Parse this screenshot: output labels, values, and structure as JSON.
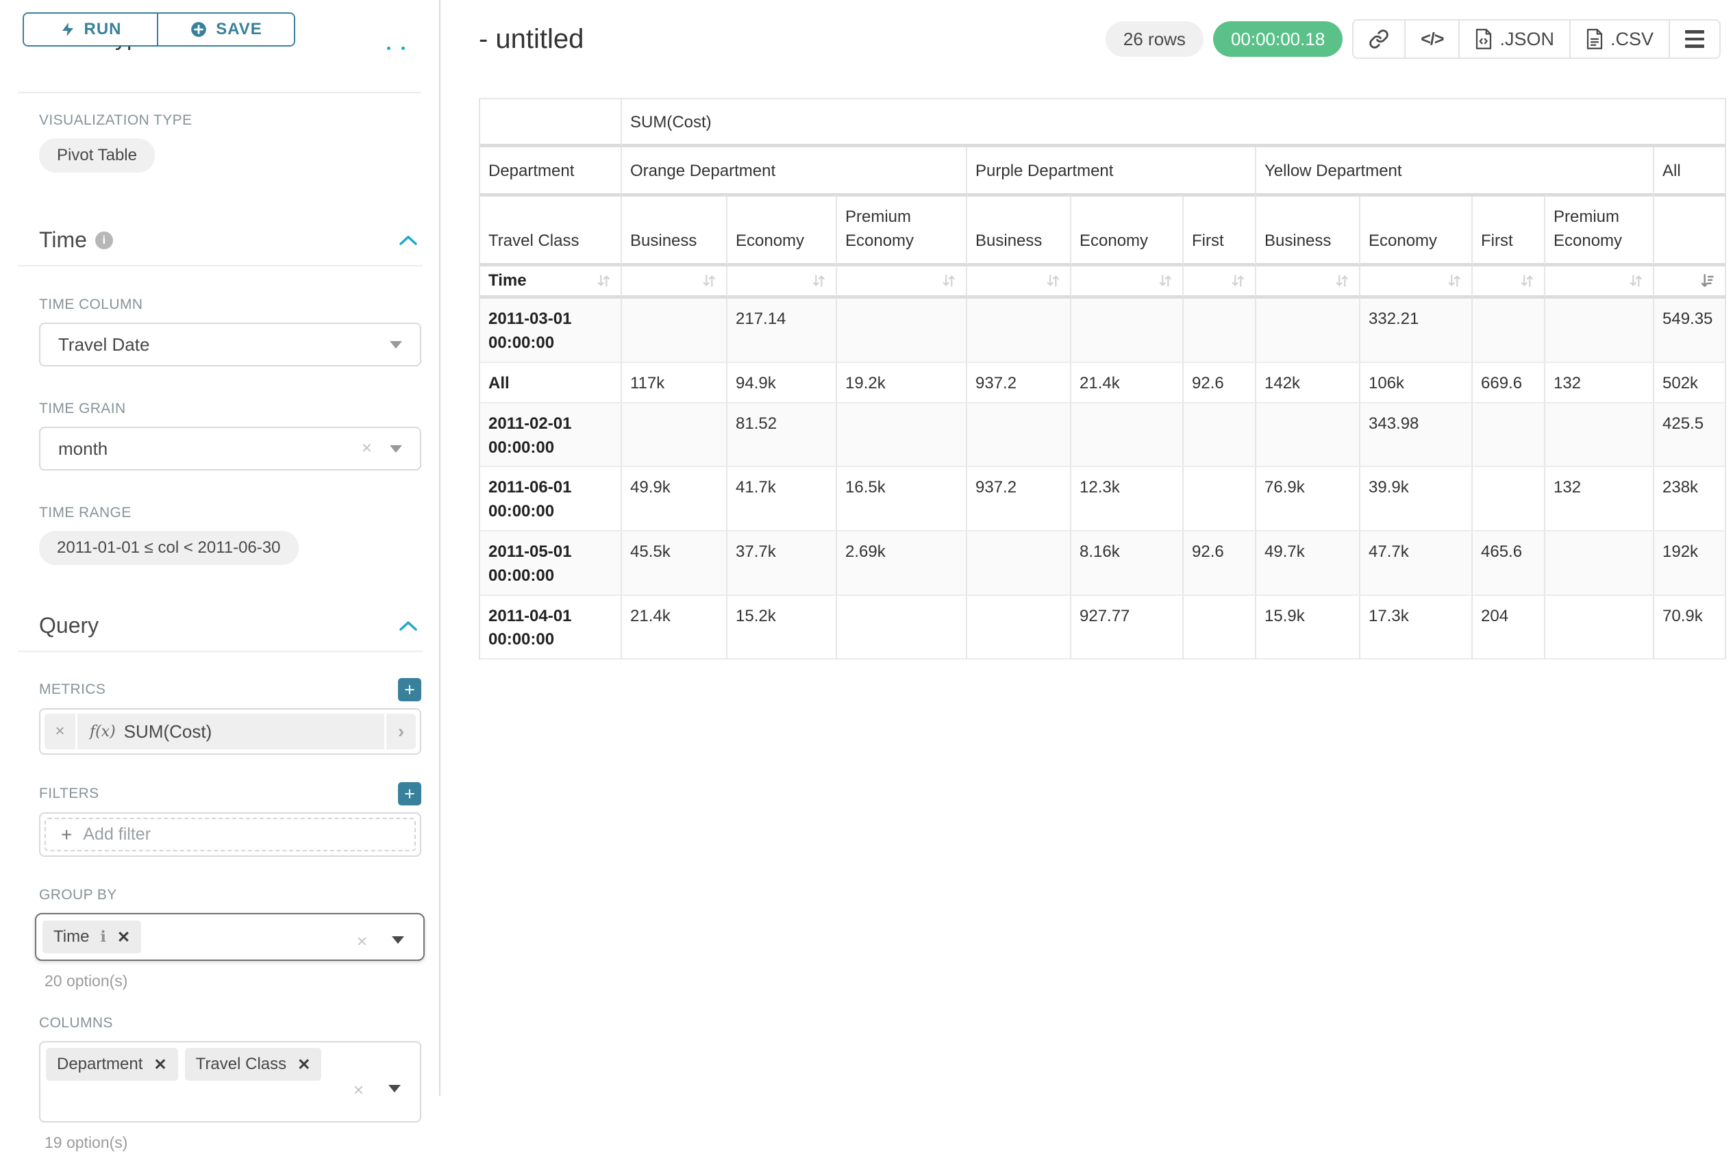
{
  "sidebar": {
    "run_label": "RUN",
    "save_label": "SAVE",
    "chart_type_heading": "Chart Type",
    "viz": {
      "label": "VISUALIZATION TYPE",
      "value": "Pivot Table"
    },
    "time": {
      "title": "Time",
      "column_label": "TIME COLUMN",
      "column_value": "Travel Date",
      "grain_label": "TIME GRAIN",
      "grain_value": "month",
      "range_label": "TIME RANGE",
      "range_value": "2011-01-01 ≤ col < 2011-06-30"
    },
    "query": {
      "title": "Query",
      "metrics_label": "METRICS",
      "metric_fn": "f(x)",
      "metric_value": "SUM(Cost)",
      "filters_label": "FILTERS",
      "add_filter_label": "Add filter",
      "group_by_label": "GROUP BY",
      "group_by_chips": [
        {
          "label": "Time"
        }
      ],
      "group_by_options": "20 option(s)",
      "columns_label": "COLUMNS",
      "columns_chips": [
        {
          "label": "Department"
        },
        {
          "label": "Travel Class"
        }
      ],
      "columns_options": "19 option(s)"
    }
  },
  "header": {
    "title": "- untitled",
    "row_count": "26 rows",
    "duration": "00:00:00.18",
    "json_label": ".JSON",
    "csv_label": ".CSV"
  },
  "icons": {
    "run": "lightning-bolt",
    "save": "plus-circle",
    "section_collapse": "chevron-up",
    "info": "info-circle",
    "add": "plus-square",
    "share": "link",
    "embed": "code",
    "export_json": "file-json",
    "export_csv": "file-csv",
    "menu": "hamburger",
    "sort_inactive": "sort-arrows",
    "sort_active": "sort-descending"
  },
  "colors": {
    "accent_teal": "#38809b",
    "bright_blue": "#1fa8c9",
    "success_green": "#5ac189",
    "label_gray": "#879399"
  },
  "pivot_table": {
    "measure_label": "SUM(Cost)",
    "column_dimension": "Department",
    "sub_dimension": "Travel Class",
    "row_dimension": "Time",
    "column_groups": [
      {
        "label": "Orange Department",
        "span": 3
      },
      {
        "label": "Purple Department",
        "span": 3
      },
      {
        "label": "Yellow Department",
        "span": 4
      },
      {
        "label": "All",
        "span": 1
      }
    ],
    "class_headers": [
      "Business",
      "Economy",
      "Premium Economy",
      "Business",
      "Economy",
      "First",
      "Business",
      "Economy",
      "First",
      "Premium Economy",
      ""
    ],
    "sorted_desc_index": 10,
    "rows": [
      {
        "label": "2011-03-01 00:00:00",
        "values": [
          "",
          "217.14",
          "",
          "",
          "",
          "",
          "",
          "332.21",
          "",
          "",
          "549.35"
        ]
      },
      {
        "label": "All",
        "values": [
          "117k",
          "94.9k",
          "19.2k",
          "937.2",
          "21.4k",
          "92.6",
          "142k",
          "106k",
          "669.6",
          "132",
          "502k"
        ]
      },
      {
        "label": "2011-02-01 00:00:00",
        "values": [
          "",
          "81.52",
          "",
          "",
          "",
          "",
          "",
          "343.98",
          "",
          "",
          "425.5"
        ]
      },
      {
        "label": "2011-06-01 00:00:00",
        "values": [
          "49.9k",
          "41.7k",
          "16.5k",
          "937.2",
          "12.3k",
          "",
          "76.9k",
          "39.9k",
          "",
          "132",
          "238k"
        ]
      },
      {
        "label": "2011-05-01 00:00:00",
        "values": [
          "45.5k",
          "37.7k",
          "2.69k",
          "",
          "8.16k",
          "92.6",
          "49.7k",
          "47.7k",
          "465.6",
          "",
          "192k"
        ]
      },
      {
        "label": "2011-04-01 00:00:00",
        "values": [
          "21.4k",
          "15.2k",
          "",
          "",
          "927.77",
          "",
          "15.9k",
          "17.3k",
          "204",
          "",
          "70.9k"
        ]
      }
    ]
  }
}
